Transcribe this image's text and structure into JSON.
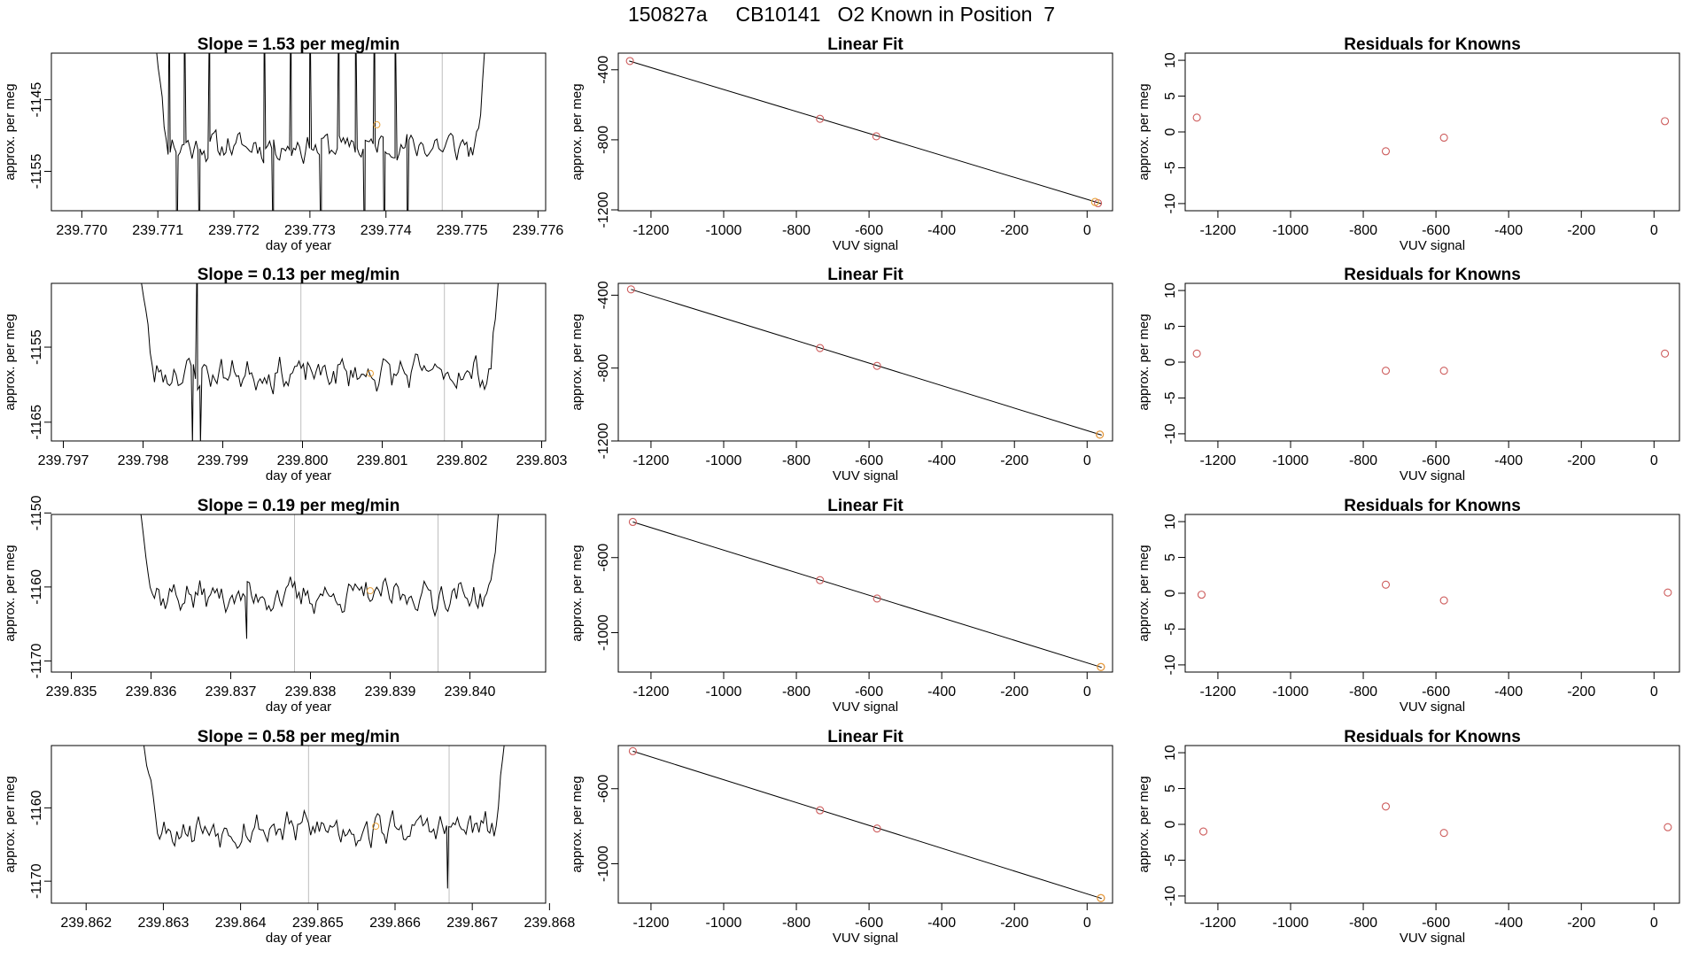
{
  "page": {
    "title": "150827a     CB10141   O2 Known in Position  7"
  },
  "colors": {
    "trace": "#000000",
    "point": "#cd5c5c",
    "highlight": "#e8a13a",
    "vline": "#bebebe"
  },
  "chart_data": [
    {
      "type": "line",
      "title": "Slope =  1.53  per meg/min",
      "xlabel": "day of year",
      "ylabel": "approx. per meg",
      "xlim": [
        239.7696,
        239.7761
      ],
      "ylim": [
        -1160.5,
        -1138.5
      ],
      "xticks": [
        239.77,
        239.771,
        239.772,
        239.773,
        239.774,
        239.775,
        239.776
      ],
      "xtick_labels": [
        "239.770",
        "239.771",
        "239.772",
        "239.773",
        "239.774",
        "239.775",
        "239.776"
      ],
      "yticks": [
        -1145,
        -1155
      ],
      "ytick_labels": [
        "-1145",
        "-1155"
      ],
      "vlines": [
        239.77474
      ],
      "highlight_point": {
        "x": 239.77388,
        "y": -1148.5
      },
      "series": [
        {
          "x_start": 239.7709,
          "x_end": 239.77535,
          "seed": 11,
          "base": -1151.5,
          "amp": 1.2,
          "spikes": [
            [
              239.77115,
              -1130
            ],
            [
              239.77125,
              -1170
            ],
            [
              239.77135,
              -1130
            ],
            [
              239.77155,
              -1170
            ],
            [
              239.77168,
              -1130
            ],
            [
              239.7724,
              -1130
            ],
            [
              239.77252,
              -1170
            ],
            [
              239.77275,
              -1130
            ],
            [
              239.773,
              -1130
            ],
            [
              239.77315,
              -1170
            ],
            [
              239.77338,
              -1130
            ],
            [
              239.7736,
              -1130
            ],
            [
              239.77372,
              -1170
            ],
            [
              239.77385,
              -1130
            ],
            [
              239.77398,
              -1170
            ],
            [
              239.77412,
              -1130
            ],
            [
              239.77428,
              -1170
            ]
          ],
          "end_rise": -1130,
          "start_drop": -1130
        }
      ]
    },
    {
      "type": "scatter",
      "title": "Linear Fit",
      "xlabel": "VUV signal",
      "ylabel": "approx. per meg",
      "xlim": [
        -1290,
        70
      ],
      "ylim": [
        -1205,
        -305
      ],
      "xticks": [
        -1200,
        -1000,
        -800,
        -600,
        -400,
        -200,
        0
      ],
      "xtick_labels": [
        "-1200",
        "-1000",
        "-800",
        "-600",
        "-400",
        "-200",
        "0"
      ],
      "yticks": [
        -400,
        -800,
        -1200
      ],
      "ytick_labels": [
        "-400",
        "-800",
        "-1200"
      ],
      "fit": {
        "x": [
          -1260,
          40
        ],
        "y": [
          -350,
          -1165
        ]
      },
      "points": [
        {
          "x": -1258,
          "y": -350
        },
        {
          "x": -735,
          "y": -680
        },
        {
          "x": -580,
          "y": -780
        },
        {
          "x": 30,
          "y": -1162
        }
      ],
      "highlight_point": {
        "x": 22,
        "y": -1155
      }
    },
    {
      "type": "scatter",
      "title": "Residuals for Knowns",
      "xlabel": "VUV signal",
      "ylabel": "approx. per meg",
      "xlim": [
        -1290,
        70
      ],
      "ylim": [
        -11,
        11
      ],
      "xticks": [
        -1200,
        -1000,
        -800,
        -600,
        -400,
        -200,
        0
      ],
      "xtick_labels": [
        "-1200",
        "-1000",
        "-800",
        "-600",
        "-400",
        "-200",
        "0"
      ],
      "yticks": [
        10,
        5,
        0,
        -5,
        -10
      ],
      "ytick_labels": [
        "10",
        "5",
        "0",
        "-5",
        "-10"
      ],
      "points": [
        {
          "x": -1258,
          "y": 2.0
        },
        {
          "x": -738,
          "y": -2.7
        },
        {
          "x": -578,
          "y": -0.8
        },
        {
          "x": 30,
          "y": 1.5
        }
      ]
    },
    {
      "type": "line",
      "title": "Slope =  0.13  per meg/min",
      "xlabel": "day of year",
      "ylabel": "approx. per meg",
      "xlim": [
        239.79685,
        239.80305
      ],
      "ylim": [
        -1167.5,
        -1146.5
      ],
      "xticks": [
        239.797,
        239.798,
        239.799,
        239.8,
        239.801,
        239.802,
        239.803
      ],
      "xtick_labels": [
        "239.797",
        "239.798",
        "239.799",
        "239.800",
        "239.801",
        "239.802",
        "239.803"
      ],
      "yticks": [
        -1155,
        -1165
      ],
      "ytick_labels": [
        "-1155",
        "-1165"
      ],
      "vlines": [
        239.79998,
        239.80178
      ],
      "highlight_point": {
        "x": 239.80085,
        "y": -1158.5
      },
      "series": [
        {
          "x_start": 239.7979,
          "x_end": 239.8025,
          "seed": 23,
          "base": -1158.5,
          "amp": 1.3,
          "spikes": [
            [
              239.79862,
              -1168
            ],
            [
              239.79868,
              -1140
            ],
            [
              239.79872,
              -1168
            ]
          ],
          "end_rise": -1140,
          "start_drop": -1140
        }
      ]
    },
    {
      "type": "scatter",
      "title": "Linear Fit",
      "xlabel": "VUV signal",
      "ylabel": "approx. per meg",
      "xlim": [
        -1290,
        70
      ],
      "ylim": [
        -1200,
        -335
      ],
      "xticks": [
        -1200,
        -1000,
        -800,
        -600,
        -400,
        -200,
        0
      ],
      "xtick_labels": [
        "-1200",
        "-1000",
        "-800",
        "-600",
        "-400",
        "-200",
        "0"
      ],
      "yticks": [
        -400,
        -800,
        -1200
      ],
      "ytick_labels": [
        "-400",
        "-800",
        "-1200"
      ],
      "fit": {
        "x": [
          -1255,
          40
        ],
        "y": [
          -368,
          -1168
        ]
      },
      "points": [
        {
          "x": -1255,
          "y": -368
        },
        {
          "x": -735,
          "y": -690
        },
        {
          "x": -578,
          "y": -788
        },
        {
          "x": 35,
          "y": -1165
        }
      ],
      "highlight_point": {
        "x": 35,
        "y": -1165
      }
    },
    {
      "type": "scatter",
      "title": "Residuals for Knowns",
      "xlabel": "VUV signal",
      "ylabel": "approx. per meg",
      "xlim": [
        -1290,
        70
      ],
      "ylim": [
        -11,
        11
      ],
      "xticks": [
        -1200,
        -1000,
        -800,
        -600,
        -400,
        -200,
        0
      ],
      "xtick_labels": [
        "-1200",
        "-1000",
        "-800",
        "-600",
        "-400",
        "-200",
        "0"
      ],
      "yticks": [
        10,
        5,
        0,
        -5,
        -10
      ],
      "ytick_labels": [
        "10",
        "5",
        "0",
        "-5",
        "-10"
      ],
      "points": [
        {
          "x": -1258,
          "y": 1.2
        },
        {
          "x": -738,
          "y": -1.2
        },
        {
          "x": -578,
          "y": -1.2
        },
        {
          "x": 30,
          "y": 1.2
        }
      ]
    },
    {
      "type": "line",
      "title": "Slope =  0.19  per meg/min",
      "xlabel": "day of year",
      "ylabel": "approx. per meg",
      "xlim": [
        239.83475,
        239.84095
      ],
      "ylim": [
        -1171.5,
        -1150.2
      ],
      "xticks": [
        239.835,
        239.836,
        239.837,
        239.838,
        239.839,
        239.84
      ],
      "xtick_labels": [
        "239.835",
        "239.836",
        "239.837",
        "239.838",
        "239.839",
        "239.840"
      ],
      "yticks": [
        -1150,
        -1160,
        -1170
      ],
      "ytick_labels": [
        "-1150",
        "-1160",
        "-1170"
      ],
      "vlines": [
        239.8378,
        239.8396
      ],
      "highlight_point": {
        "x": 239.83875,
        "y": -1160.5
      },
      "series": [
        {
          "x_start": 239.8358,
          "x_end": 239.8404,
          "seed": 37,
          "base": -1161.2,
          "amp": 1.3,
          "spikes": [
            [
              239.8372,
              -1167
            ]
          ],
          "end_rise": -1145,
          "start_drop": -1145
        }
      ]
    },
    {
      "type": "scatter",
      "title": "Linear Fit",
      "xlabel": "VUV signal",
      "ylabel": "approx. per meg",
      "xlim": [
        -1290,
        70
      ],
      "ylim": [
        -1210,
        -370
      ],
      "xticks": [
        -1200,
        -1000,
        -800,
        -600,
        -400,
        -200,
        0
      ],
      "xtick_labels": [
        "-1200",
        "-1000",
        "-800",
        "-600",
        "-400",
        "-200",
        "0"
      ],
      "yticks": [
        -600,
        -1000
      ],
      "ytick_labels": [
        "-600",
        "-1000"
      ],
      "fit": {
        "x": [
          -1250,
          40
        ],
        "y": [
          -410,
          -1185
        ]
      },
      "points": [
        {
          "x": -1250,
          "y": -410
        },
        {
          "x": -735,
          "y": -720
        },
        {
          "x": -578,
          "y": -818
        },
        {
          "x": 38,
          "y": -1183
        }
      ],
      "highlight_point": {
        "x": 38,
        "y": -1183
      }
    },
    {
      "type": "scatter",
      "title": "Residuals for Knowns",
      "xlabel": "VUV signal",
      "ylabel": "approx. per meg",
      "xlim": [
        -1290,
        70
      ],
      "ylim": [
        -11,
        11
      ],
      "xticks": [
        -1200,
        -1000,
        -800,
        -600,
        -400,
        -200,
        0
      ],
      "xtick_labels": [
        "-1200",
        "-1000",
        "-800",
        "-600",
        "-400",
        "-200",
        "0"
      ],
      "yticks": [
        10,
        5,
        0,
        -5,
        -10
      ],
      "ytick_labels": [
        "10",
        "5",
        "0",
        "-5",
        "-10"
      ],
      "points": [
        {
          "x": -1245,
          "y": -0.2
        },
        {
          "x": -738,
          "y": 1.2
        },
        {
          "x": -578,
          "y": -1.0
        },
        {
          "x": 38,
          "y": 0.1
        }
      ]
    },
    {
      "type": "line",
      "title": "Slope =  0.58  per meg/min",
      "xlabel": "day of year",
      "ylabel": "approx. per meg",
      "xlim": [
        239.86155,
        239.86795
      ],
      "ylim": [
        -1173,
        -1151.5
      ],
      "xticks": [
        239.862,
        239.863,
        239.864,
        239.865,
        239.866,
        239.867,
        239.868
      ],
      "xtick_labels": [
        "239.862",
        "239.863",
        "239.864",
        "239.865",
        "239.866",
        "239.867",
        "239.868"
      ],
      "yticks": [
        -1160,
        -1170
      ],
      "ytick_labels": [
        "-1160",
        "-1170"
      ],
      "vlines": [
        239.86488,
        239.8667
      ],
      "highlight_point": {
        "x": 239.86575,
        "y": -1162.5
      },
      "series": [
        {
          "x_start": 239.8627,
          "x_end": 239.86745,
          "seed": 53,
          "base": -1162.8,
          "amp": 1.4,
          "spikes": [
            [
              239.86668,
              -1171
            ]
          ],
          "end_rise": -1148,
          "start_drop": -1148
        }
      ]
    },
    {
      "type": "scatter",
      "title": "Linear Fit",
      "xlabel": "VUV signal",
      "ylabel": "approx. per meg",
      "xlim": [
        -1290,
        70
      ],
      "ylim": [
        -1210,
        -370
      ],
      "xticks": [
        -1200,
        -1000,
        -800,
        -600,
        -400,
        -200,
        0
      ],
      "xtick_labels": [
        "-1200",
        "-1000",
        "-800",
        "-600",
        "-400",
        "-200",
        "0"
      ],
      "yticks": [
        -600,
        -1000
      ],
      "ytick_labels": [
        "-600",
        "-1000"
      ],
      "fit": {
        "x": [
          -1250,
          40
        ],
        "y": [
          -400,
          -1185
        ]
      },
      "points": [
        {
          "x": -1250,
          "y": -400
        },
        {
          "x": -735,
          "y": -715
        },
        {
          "x": -578,
          "y": -812
        },
        {
          "x": 38,
          "y": -1183
        }
      ],
      "highlight_point": {
        "x": 38,
        "y": -1183
      }
    },
    {
      "type": "scatter",
      "title": "Residuals for Knowns",
      "xlabel": "VUV signal",
      "ylabel": "approx. per meg",
      "xlim": [
        -1290,
        70
      ],
      "ylim": [
        -11,
        11
      ],
      "xticks": [
        -1200,
        -1000,
        -800,
        -600,
        -400,
        -200,
        0
      ],
      "xtick_labels": [
        "-1200",
        "-1000",
        "-800",
        "-600",
        "-400",
        "-200",
        "0"
      ],
      "yticks": [
        10,
        5,
        0,
        -5,
        -10
      ],
      "ytick_labels": [
        "10",
        "5",
        "0",
        "-5",
        "-10"
      ],
      "points": [
        {
          "x": -1240,
          "y": -1.0
        },
        {
          "x": -738,
          "y": 2.5
        },
        {
          "x": -578,
          "y": -1.2
        },
        {
          "x": 38,
          "y": -0.4
        }
      ]
    }
  ]
}
